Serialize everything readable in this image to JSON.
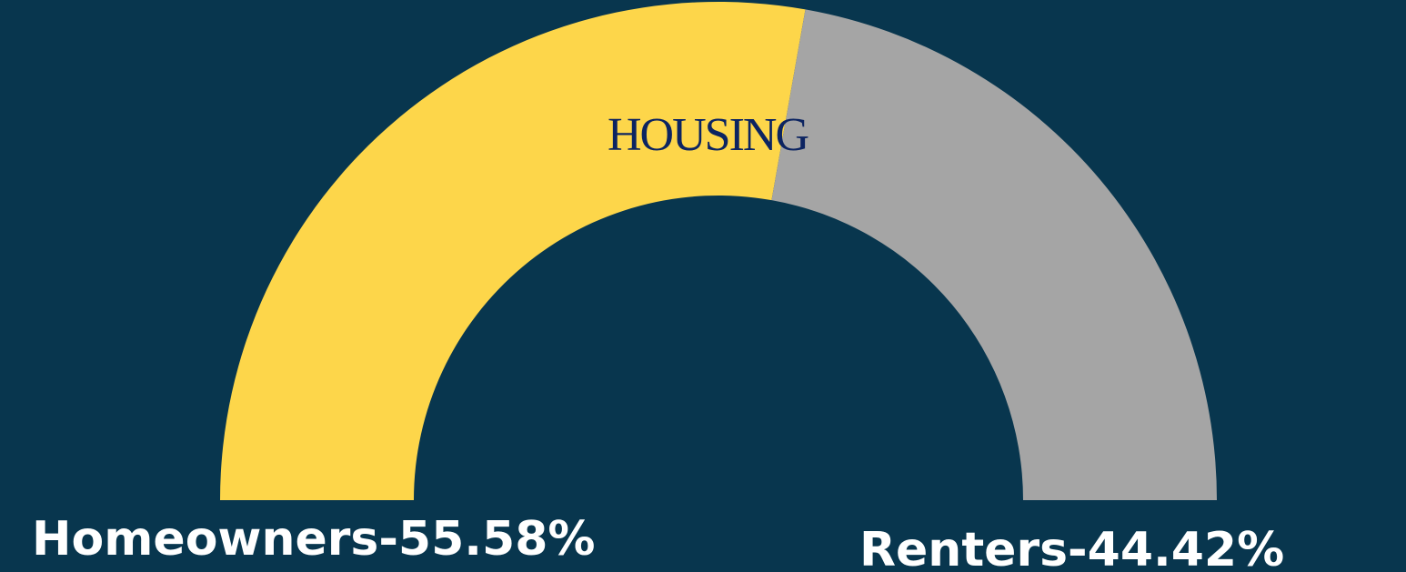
{
  "chart_data": {
    "type": "gauge",
    "title": "HOUSING",
    "values": [
      55.58,
      44.42
    ],
    "value_labels": [
      "Homeowners-55.58%",
      "Renters-44.42%"
    ],
    "colors": [
      "#fdd64a",
      "#a5a5a5"
    ]
  }
}
